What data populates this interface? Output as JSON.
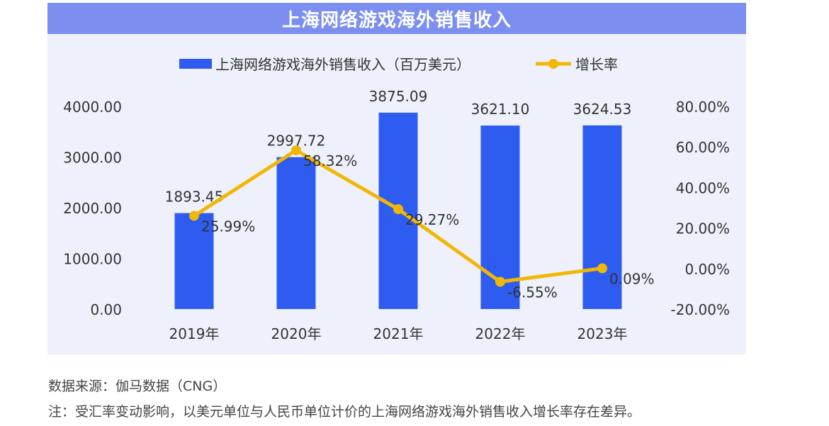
{
  "colors": {
    "title_bg": "#7c8ff0",
    "panel_bg": "#eef1fb",
    "bar": "#2f5cf0",
    "line": "#f2b705"
  },
  "chart_data": {
    "type": "bar",
    "title": "上海网络游戏海外销售收入",
    "categories": [
      "2019年",
      "2020年",
      "2021年",
      "2022年",
      "2023年"
    ],
    "series": [
      {
        "name": "上海网络游戏海外销售收入（百万美元）",
        "type": "bar",
        "axis": "left",
        "values": [
          1893.45,
          2997.72,
          3875.09,
          3621.1,
          3624.53
        ],
        "labels": [
          "1893.45",
          "2997.72",
          "3875.09",
          "3621.10",
          "3624.53"
        ]
      },
      {
        "name": "增长率",
        "type": "line",
        "axis": "right",
        "values": [
          25.99,
          58.32,
          29.27,
          -6.55,
          0.09
        ],
        "labels": [
          "25.99%",
          "58.32%",
          "29.27%",
          "-6.55%",
          "0.09%"
        ]
      }
    ],
    "left_axis": {
      "ylim": [
        0,
        4000
      ],
      "ticks": [
        0,
        1000,
        2000,
        3000,
        4000
      ],
      "tick_labels": [
        "0.00",
        "1000.00",
        "2000.00",
        "3000.00",
        "4000.00"
      ]
    },
    "right_axis": {
      "ylim": [
        -20,
        80
      ],
      "ticks": [
        -20,
        0,
        20,
        40,
        60,
        80
      ],
      "tick_labels": [
        "-20.00%",
        "0.00%",
        "20.00%",
        "40.00%",
        "60.00%",
        "80.00%"
      ]
    },
    "legend_position": "top-center",
    "grid": false
  },
  "footnotes": {
    "source": "数据来源：伽马数据（CNG）",
    "note": "注：受汇率变动影响，以美元单位与人民币单位计价的上海网络游戏海外销售收入增长率存在差异。"
  }
}
